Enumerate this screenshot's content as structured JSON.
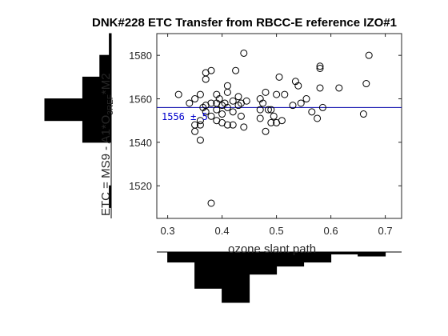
{
  "chart_data": {
    "type": "scatter",
    "title": "DNK#228 ETC Transfer from RBCC-E reference IZO#1",
    "xlabel": "ozone slant path",
    "ylabel": "ETC = MS9 - A1*O",
    "ylabel_sub": "3REF",
    "ylabel_tail": "*M2",
    "xlim": [
      0.28,
      0.73
    ],
    "ylim": [
      1505,
      1590
    ],
    "xticks": [
      "0.3",
      "0.4",
      "0.5",
      "0.6",
      "0.7"
    ],
    "yticks": [
      "1520",
      "1540",
      "1560",
      "1580"
    ],
    "annotation": "1556 ± 5",
    "reference_line": 1556,
    "grid": false,
    "marker": "open-circle",
    "points": [
      [
        0.32,
        1562
      ],
      [
        0.34,
        1558
      ],
      [
        0.35,
        1548
      ],
      [
        0.35,
        1545
      ],
      [
        0.35,
        1560
      ],
      [
        0.36,
        1562
      ],
      [
        0.36,
        1541
      ],
      [
        0.36,
        1550
      ],
      [
        0.36,
        1548
      ],
      [
        0.365,
        1556
      ],
      [
        0.37,
        1572
      ],
      [
        0.37,
        1569
      ],
      [
        0.37,
        1557
      ],
      [
        0.37,
        1554
      ],
      [
        0.38,
        1573
      ],
      [
        0.38,
        1552
      ],
      [
        0.38,
        1558
      ],
      [
        0.38,
        1512
      ],
      [
        0.39,
        1558
      ],
      [
        0.39,
        1555
      ],
      [
        0.39,
        1550
      ],
      [
        0.39,
        1562
      ],
      [
        0.395,
        1560
      ],
      [
        0.4,
        1557
      ],
      [
        0.4,
        1553
      ],
      [
        0.4,
        1549
      ],
      [
        0.405,
        1558
      ],
      [
        0.41,
        1556
      ],
      [
        0.41,
        1548
      ],
      [
        0.41,
        1566
      ],
      [
        0.41,
        1563
      ],
      [
        0.42,
        1554
      ],
      [
        0.42,
        1559
      ],
      [
        0.42,
        1548
      ],
      [
        0.425,
        1573
      ],
      [
        0.43,
        1561
      ],
      [
        0.43,
        1557
      ],
      [
        0.435,
        1552
      ],
      [
        0.435,
        1558
      ],
      [
        0.44,
        1581
      ],
      [
        0.44,
        1547
      ],
      [
        0.445,
        1559
      ],
      [
        0.47,
        1560
      ],
      [
        0.47,
        1555
      ],
      [
        0.47,
        1551
      ],
      [
        0.475,
        1558
      ],
      [
        0.48,
        1545
      ],
      [
        0.48,
        1563
      ],
      [
        0.485,
        1555
      ],
      [
        0.49,
        1549
      ],
      [
        0.49,
        1555
      ],
      [
        0.495,
        1552
      ],
      [
        0.5,
        1562
      ],
      [
        0.5,
        1549
      ],
      [
        0.505,
        1570
      ],
      [
        0.51,
        1550
      ],
      [
        0.515,
        1562
      ],
      [
        0.53,
        1557
      ],
      [
        0.535,
        1568
      ],
      [
        0.54,
        1566
      ],
      [
        0.545,
        1558
      ],
      [
        0.555,
        1560
      ],
      [
        0.565,
        1554
      ],
      [
        0.575,
        1551
      ],
      [
        0.58,
        1575
      ],
      [
        0.58,
        1574
      ],
      [
        0.58,
        1565
      ],
      [
        0.585,
        1556
      ],
      [
        0.615,
        1565
      ],
      [
        0.66,
        1553
      ],
      [
        0.665,
        1567
      ],
      [
        0.67,
        1580
      ]
    ],
    "marginal_x_histogram": {
      "bin_edges": [
        0.3,
        0.35,
        0.4,
        0.45,
        0.5,
        0.55,
        0.6,
        0.65,
        0.7
      ],
      "counts": [
        5,
        18,
        25,
        11,
        7,
        5,
        1,
        2
      ]
    },
    "marginal_y_histogram": {
      "bin_edges": [
        1510,
        1520,
        1530,
        1540,
        1550,
        1560,
        1570,
        1580,
        1590
      ],
      "counts": [
        1,
        0,
        0,
        15,
        35,
        15,
        6,
        1
      ]
    }
  }
}
